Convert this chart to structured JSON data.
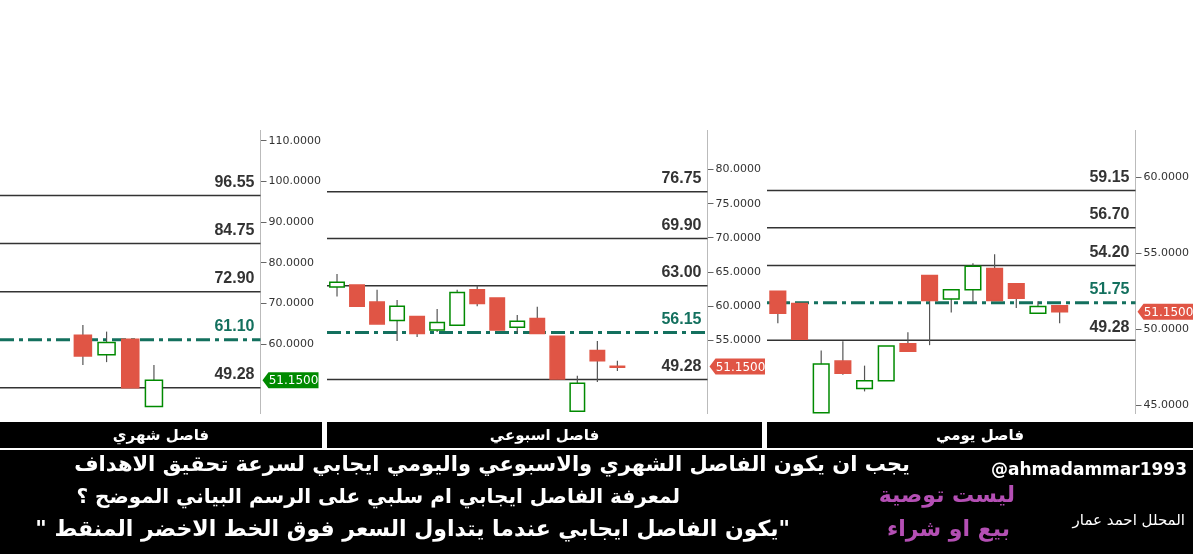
{
  "chart_data": [
    {
      "type": "candlestick",
      "title": "فاصل شهري",
      "tick_labels": "y",
      "categories": [
        null,
        null,
        null,
        null,
        null,
        null,
        null,
        null,
        null,
        null,
        null
      ],
      "ohlc": [
        null,
        null,
        null,
        [
          62.2,
          64.7,
          54.9,
          57.1
        ],
        [
          57.4,
          63.1,
          55.6,
          60.4
        ],
        [
          61.2,
          61.2,
          49.3,
          49.3
        ],
        [
          44.7,
          54.9,
          44.7,
          51.15
        ],
        null,
        null,
        null,
        null
      ],
      "colors": [
        null,
        null,
        null,
        "#e05545",
        "#008a00",
        "#e05545",
        "#008a00",
        null,
        null,
        null,
        null
      ],
      "ylim": [
        43,
        112.5
      ],
      "yticks": [
        {
          "value": 60,
          "label": "60.0000"
        },
        {
          "value": 70,
          "label": "70.0000"
        },
        {
          "value": 80,
          "label": "80.0000"
        },
        {
          "value": 90,
          "label": "90.0000"
        },
        {
          "value": 100,
          "label": "100.0000"
        },
        {
          "value": 110,
          "label": "110.0000"
        }
      ],
      "ref_lines": [
        {
          "axis": "y",
          "value": 96.55,
          "label": "96.55",
          "color": "#333333",
          "line_style": "solid"
        },
        {
          "axis": "y",
          "value": 84.75,
          "label": "84.75",
          "color": "#333333",
          "line_style": "solid"
        },
        {
          "axis": "y",
          "value": 72.9,
          "label": "72.90",
          "color": "#333333",
          "line_style": "solid"
        },
        {
          "axis": "y",
          "value": 61.1,
          "label": "61.10",
          "color": "#13705e",
          "line_style": "dashed"
        },
        {
          "axis": "y",
          "value": 49.28,
          "label": "49.28",
          "color": "#333333",
          "line_style": "solid"
        }
      ],
      "annotations": [
        "51.1500"
      ]
    },
    {
      "type": "candlestick",
      "title": "فاصل اسبوعي",
      "tick_labels": "y",
      "categories": [
        null,
        null,
        null,
        null,
        null,
        null,
        null,
        null,
        null,
        null,
        null,
        null,
        null,
        null,
        null,
        null,
        null,
        null,
        null
      ],
      "ohlc": [
        [
          62.8,
          64.7,
          61.4,
          63.5
        ],
        [
          63.1,
          63.1,
          60.0,
          60.0
        ],
        [
          60.6,
          62.4,
          57.4,
          57.4
        ],
        [
          57.9,
          60.9,
          54.9,
          60.0
        ],
        [
          58.5,
          58.5,
          55.5,
          56.0
        ],
        [
          56.5,
          59.6,
          56.2,
          57.6
        ],
        [
          57.2,
          62.4,
          57.2,
          62.0
        ],
        [
          62.4,
          63.0,
          60.0,
          60.4
        ],
        [
          61.2,
          61.2,
          56.5,
          56.5
        ],
        [
          56.9,
          58.7,
          56.0,
          57.8
        ],
        [
          58.2,
          59.9,
          56.0,
          56.0
        ],
        [
          55.6,
          55.6,
          49.35,
          49.35
        ],
        [
          44.6,
          49.8,
          44.6,
          48.7
        ],
        [
          53.5,
          54.9,
          48.9,
          52.0
        ],
        [
          51.2,
          52.0,
          50.5,
          51.15
        ],
        null,
        null,
        null,
        null
      ],
      "colors": [
        "#008a00",
        "#e05545",
        "#e05545",
        "#008a00",
        "#e05545",
        "#008a00",
        "#008a00",
        "#e05545",
        "#e05545",
        "#008a00",
        "#e05545",
        "#e05545",
        "#008a00",
        "#e05545",
        "#e05545",
        null,
        null,
        null,
        null
      ],
      "ylim": [
        44.3,
        85.7
      ],
      "yticks": [
        {
          "value": 55,
          "label": "55.0000"
        },
        {
          "value": 60,
          "label": "60.0000"
        },
        {
          "value": 65,
          "label": "65.0000"
        },
        {
          "value": 70,
          "label": "70.0000"
        },
        {
          "value": 75,
          "label": "75.0000"
        },
        {
          "value": 80,
          "label": "80.0000"
        }
      ],
      "ref_lines": [
        {
          "axis": "y",
          "value": 76.75,
          "label": "76.75",
          "color": "#333333",
          "line_style": "solid"
        },
        {
          "axis": "y",
          "value": 69.9,
          "label": "69.90",
          "color": "#333333",
          "line_style": "solid"
        },
        {
          "axis": "y",
          "value": 63.0,
          "label": "63.00",
          "color": "#333333",
          "line_style": "solid"
        },
        {
          "axis": "y",
          "value": 56.15,
          "label": "56.15",
          "color": "#13705e",
          "line_style": "dashed"
        },
        {
          "axis": "y",
          "value": 49.28,
          "label": "49.28",
          "color": "#333333",
          "line_style": "solid"
        }
      ],
      "annotations": [
        "51.1500"
      ]
    },
    {
      "type": "candlestick",
      "title": "فاصل يومي",
      "tick_labels": "y",
      "categories": [
        null,
        null,
        null,
        null,
        null,
        null,
        null,
        null,
        null,
        null,
        null,
        null,
        null,
        null,
        null,
        null,
        null
      ],
      "ohlc": [
        [
          52.5,
          52.5,
          50.4,
          51.05
        ],
        [
          51.7,
          51.7,
          49.34,
          49.34
        ],
        [
          44.5,
          48.6,
          44.5,
          47.7
        ],
        [
          47.9,
          49.2,
          47.0,
          47.1
        ],
        [
          46.1,
          47.6,
          45.9,
          46.6
        ],
        [
          46.6,
          48.9,
          46.6,
          48.9
        ],
        [
          49.05,
          49.8,
          48.5,
          48.55
        ],
        [
          53.55,
          53.55,
          48.95,
          51.9
        ],
        [
          52.0,
          52.65,
          51.1,
          52.6
        ],
        [
          52.6,
          54.35,
          51.8,
          54.15
        ],
        [
          54.0,
          54.95,
          51.9,
          51.9
        ],
        [
          53.0,
          53.0,
          51.4,
          52.05
        ],
        [
          51.05,
          51.85,
          51.0,
          51.5
        ],
        [
          51.55,
          51.55,
          50.4,
          51.15
        ],
        null,
        null,
        null
      ],
      "colors": [
        "#e05545",
        "#e05545",
        "#008a00",
        "#e05545",
        "#008a00",
        "#008a00",
        "#e05545",
        "#e05545",
        "#008a00",
        "#008a00",
        "#e05545",
        "#e05545",
        "#008a00",
        "#e05545",
        null,
        null,
        null
      ],
      "ylim": [
        44.45,
        63.1
      ],
      "yticks": [
        {
          "value": 45,
          "label": "45.0000"
        },
        {
          "value": 50,
          "label": "50.0000"
        },
        {
          "value": 55,
          "label": "55.0000"
        },
        {
          "value": 60,
          "label": "60.0000"
        }
      ],
      "ref_lines": [
        {
          "axis": "y",
          "value": 59.15,
          "label": "59.15",
          "color": "#333333",
          "line_style": "solid"
        },
        {
          "axis": "y",
          "value": 56.7,
          "label": "56.70",
          "color": "#333333",
          "line_style": "solid"
        },
        {
          "axis": "y",
          "value": 54.2,
          "label": "54.20",
          "color": "#333333",
          "line_style": "solid"
        },
        {
          "axis": "y",
          "value": 51.75,
          "label": "51.75",
          "color": "#13705e",
          "line_style": "dashed"
        },
        {
          "axis": "y",
          "value": 49.28,
          "label": "49.28",
          "color": "#333333",
          "line_style": "solid"
        }
      ],
      "annotations": [
        "51.1500"
      ]
    },
    {
      "type": "other",
      "annotations": [
        "يجب ان يكون الفاصل الشهري والاسبوعي واليومي ايجابي لسرعة تحقيق الاهداف",
        "لمعرفة الفاصل ايجابي ام سلبي على الرسم البياني الموضح ؟",
        "\"يكون الفاصل ايجابي عندما يتداول السعر فوق الخط الاخضر المنقط \"",
        "@ahmadammar1993",
        "ليست توصية",
        "بيع او شراء",
        "المحلل احمد عمار"
      ]
    }
  ]
}
